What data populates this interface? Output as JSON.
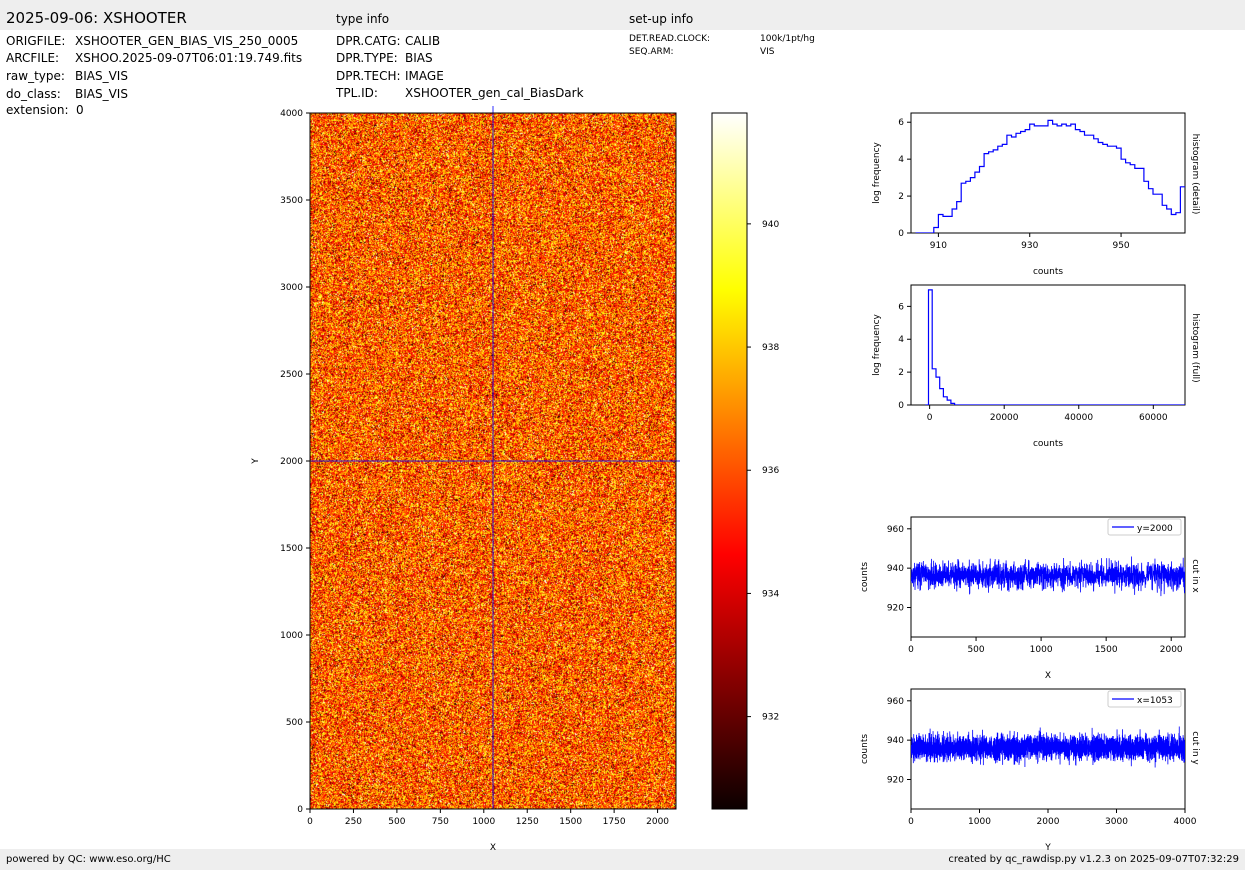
{
  "header": {
    "title": "2025-09-06: XSHOOTER",
    "type_info_title": "type info",
    "setup_info_title": "set-up info"
  },
  "file_info": [
    {
      "key": "ORIGFILE:",
      "value": "XSHOOTER_GEN_BIAS_VIS_250_0005"
    },
    {
      "key": "ARCFILE:",
      "value": "XSHOO.2025-09-07T06:01:19.749.fits"
    },
    {
      "key": "raw_type:",
      "value": "BIAS_VIS"
    },
    {
      "key": "do_class:",
      "value": "BIAS_VIS"
    },
    {
      "key": "extension:",
      "value": "0"
    }
  ],
  "type_info": [
    {
      "key": "DPR.CATG:",
      "value": "CALIB"
    },
    {
      "key": "DPR.TYPE:",
      "value": "BIAS"
    },
    {
      "key": "DPR.TECH:",
      "value": "IMAGE"
    },
    {
      "key": "TPL.ID:",
      "value": "XSHOOTER_gen_cal_BiasDark"
    }
  ],
  "setup_info": [
    {
      "key": "DET.READ.CLOCK:",
      "value": "100k/1pt/hg"
    },
    {
      "key": "SEQ.ARM:",
      "value": "VIS"
    }
  ],
  "footer": {
    "left": "powered by QC: www.eso.org/HC",
    "right": "created by qc_rawdisp.py v1.2.3 on 2025-09-07T07:32:29"
  },
  "chart_data": [
    {
      "type": "heatmap",
      "name": "image",
      "xlabel": "X",
      "ylabel": "Y",
      "xlim": [
        0,
        2106
      ],
      "ylim": [
        0,
        4000
      ],
      "xticks": [
        0,
        250,
        500,
        750,
        1000,
        1250,
        1500,
        1750,
        2000
      ],
      "yticks": [
        0,
        500,
        1000,
        1500,
        2000,
        2500,
        3000,
        3500,
        4000
      ],
      "cut_x": 1053,
      "cut_y": 2000,
      "colormap": "hot",
      "colorbar": {
        "range": [
          930.5,
          941.8
        ],
        "ticks": [
          932,
          934,
          936,
          938,
          940
        ]
      }
    },
    {
      "type": "line",
      "name": "histogram-detail",
      "xlabel": "counts",
      "ylabel": "log frequency",
      "side_label": "histogram (detail)",
      "xlim": [
        904,
        964
      ],
      "ylim": [
        0,
        6.5
      ],
      "xticks": [
        910,
        930,
        950
      ],
      "yticks": [
        0,
        2,
        4,
        6
      ],
      "color": "#0000ff",
      "step_x": [
        905,
        906,
        907,
        908,
        909,
        910,
        911,
        912,
        913,
        914,
        915,
        916,
        917,
        918,
        919,
        920,
        921,
        922,
        923,
        924,
        925,
        926,
        927,
        928,
        929,
        930,
        931,
        932,
        933,
        934,
        935,
        936,
        937,
        938,
        939,
        940,
        941,
        942,
        943,
        944,
        945,
        946,
        947,
        948,
        949,
        950,
        951,
        952,
        953,
        954,
        955,
        956,
        957,
        958,
        959,
        960,
        961,
        962,
        963
      ],
      "step_y": [
        0,
        0,
        0,
        0,
        0.3,
        1.0,
        0.9,
        0.9,
        1.3,
        1.7,
        2.7,
        2.8,
        3.0,
        3.3,
        3.6,
        4.3,
        4.4,
        4.5,
        4.7,
        4.8,
        5.3,
        5.2,
        5.4,
        5.5,
        5.6,
        5.9,
        5.8,
        5.8,
        5.8,
        6.1,
        5.9,
        5.8,
        5.9,
        5.8,
        5.9,
        5.6,
        5.5,
        5.3,
        5.3,
        5.1,
        4.9,
        4.8,
        4.7,
        4.7,
        4.6,
        4.0,
        3.8,
        3.7,
        3.5,
        3.5,
        2.8,
        2.4,
        2.1,
        2.1,
        1.5,
        1.3,
        1.0,
        1.1,
        2.5
      ]
    },
    {
      "type": "line",
      "name": "histogram-full",
      "xlabel": "counts",
      "ylabel": "log frequency",
      "side_label": "histogram (full)",
      "xlim": [
        -5000,
        68500
      ],
      "ylim": [
        0,
        7.3
      ],
      "xticks": [
        0,
        20000,
        40000,
        60000
      ],
      "yticks": [
        0,
        2,
        4,
        6
      ],
      "color": "#0000ff",
      "step_x": [
        -1200,
        -300,
        700,
        1700,
        2700,
        3700,
        4700,
        5700,
        6700,
        68000
      ],
      "step_y": [
        0,
        7.0,
        2.2,
        1.7,
        1.0,
        0.5,
        0.3,
        0.1,
        0,
        0
      ]
    },
    {
      "type": "line",
      "name": "cut-in-x",
      "xlabel": "X",
      "ylabel": "counts",
      "side_label": "cut in x",
      "legend": "y=2000",
      "legend_position": "top-right",
      "xlim": [
        0,
        2106
      ],
      "ylim": [
        905,
        966
      ],
      "xticks": [
        0,
        500,
        1000,
        1500,
        2000
      ],
      "yticks": [
        920,
        940,
        960
      ],
      "color": "#0000ff",
      "n_points": 2106,
      "mean": 936.3,
      "noise": 4.5,
      "seed": 11
    },
    {
      "type": "line",
      "name": "cut-in-y",
      "xlabel": "Y",
      "ylabel": "counts",
      "side_label": "cut in y",
      "legend": "x=1053",
      "legend_position": "top-right",
      "xlim": [
        0,
        4000
      ],
      "ylim": [
        905,
        966
      ],
      "xticks": [
        0,
        1000,
        2000,
        3000,
        4000
      ],
      "yticks": [
        920,
        940,
        960
      ],
      "color": "#0000ff",
      "n_points": 4000,
      "mean": 936.3,
      "noise": 4.5,
      "seed": 23
    }
  ]
}
